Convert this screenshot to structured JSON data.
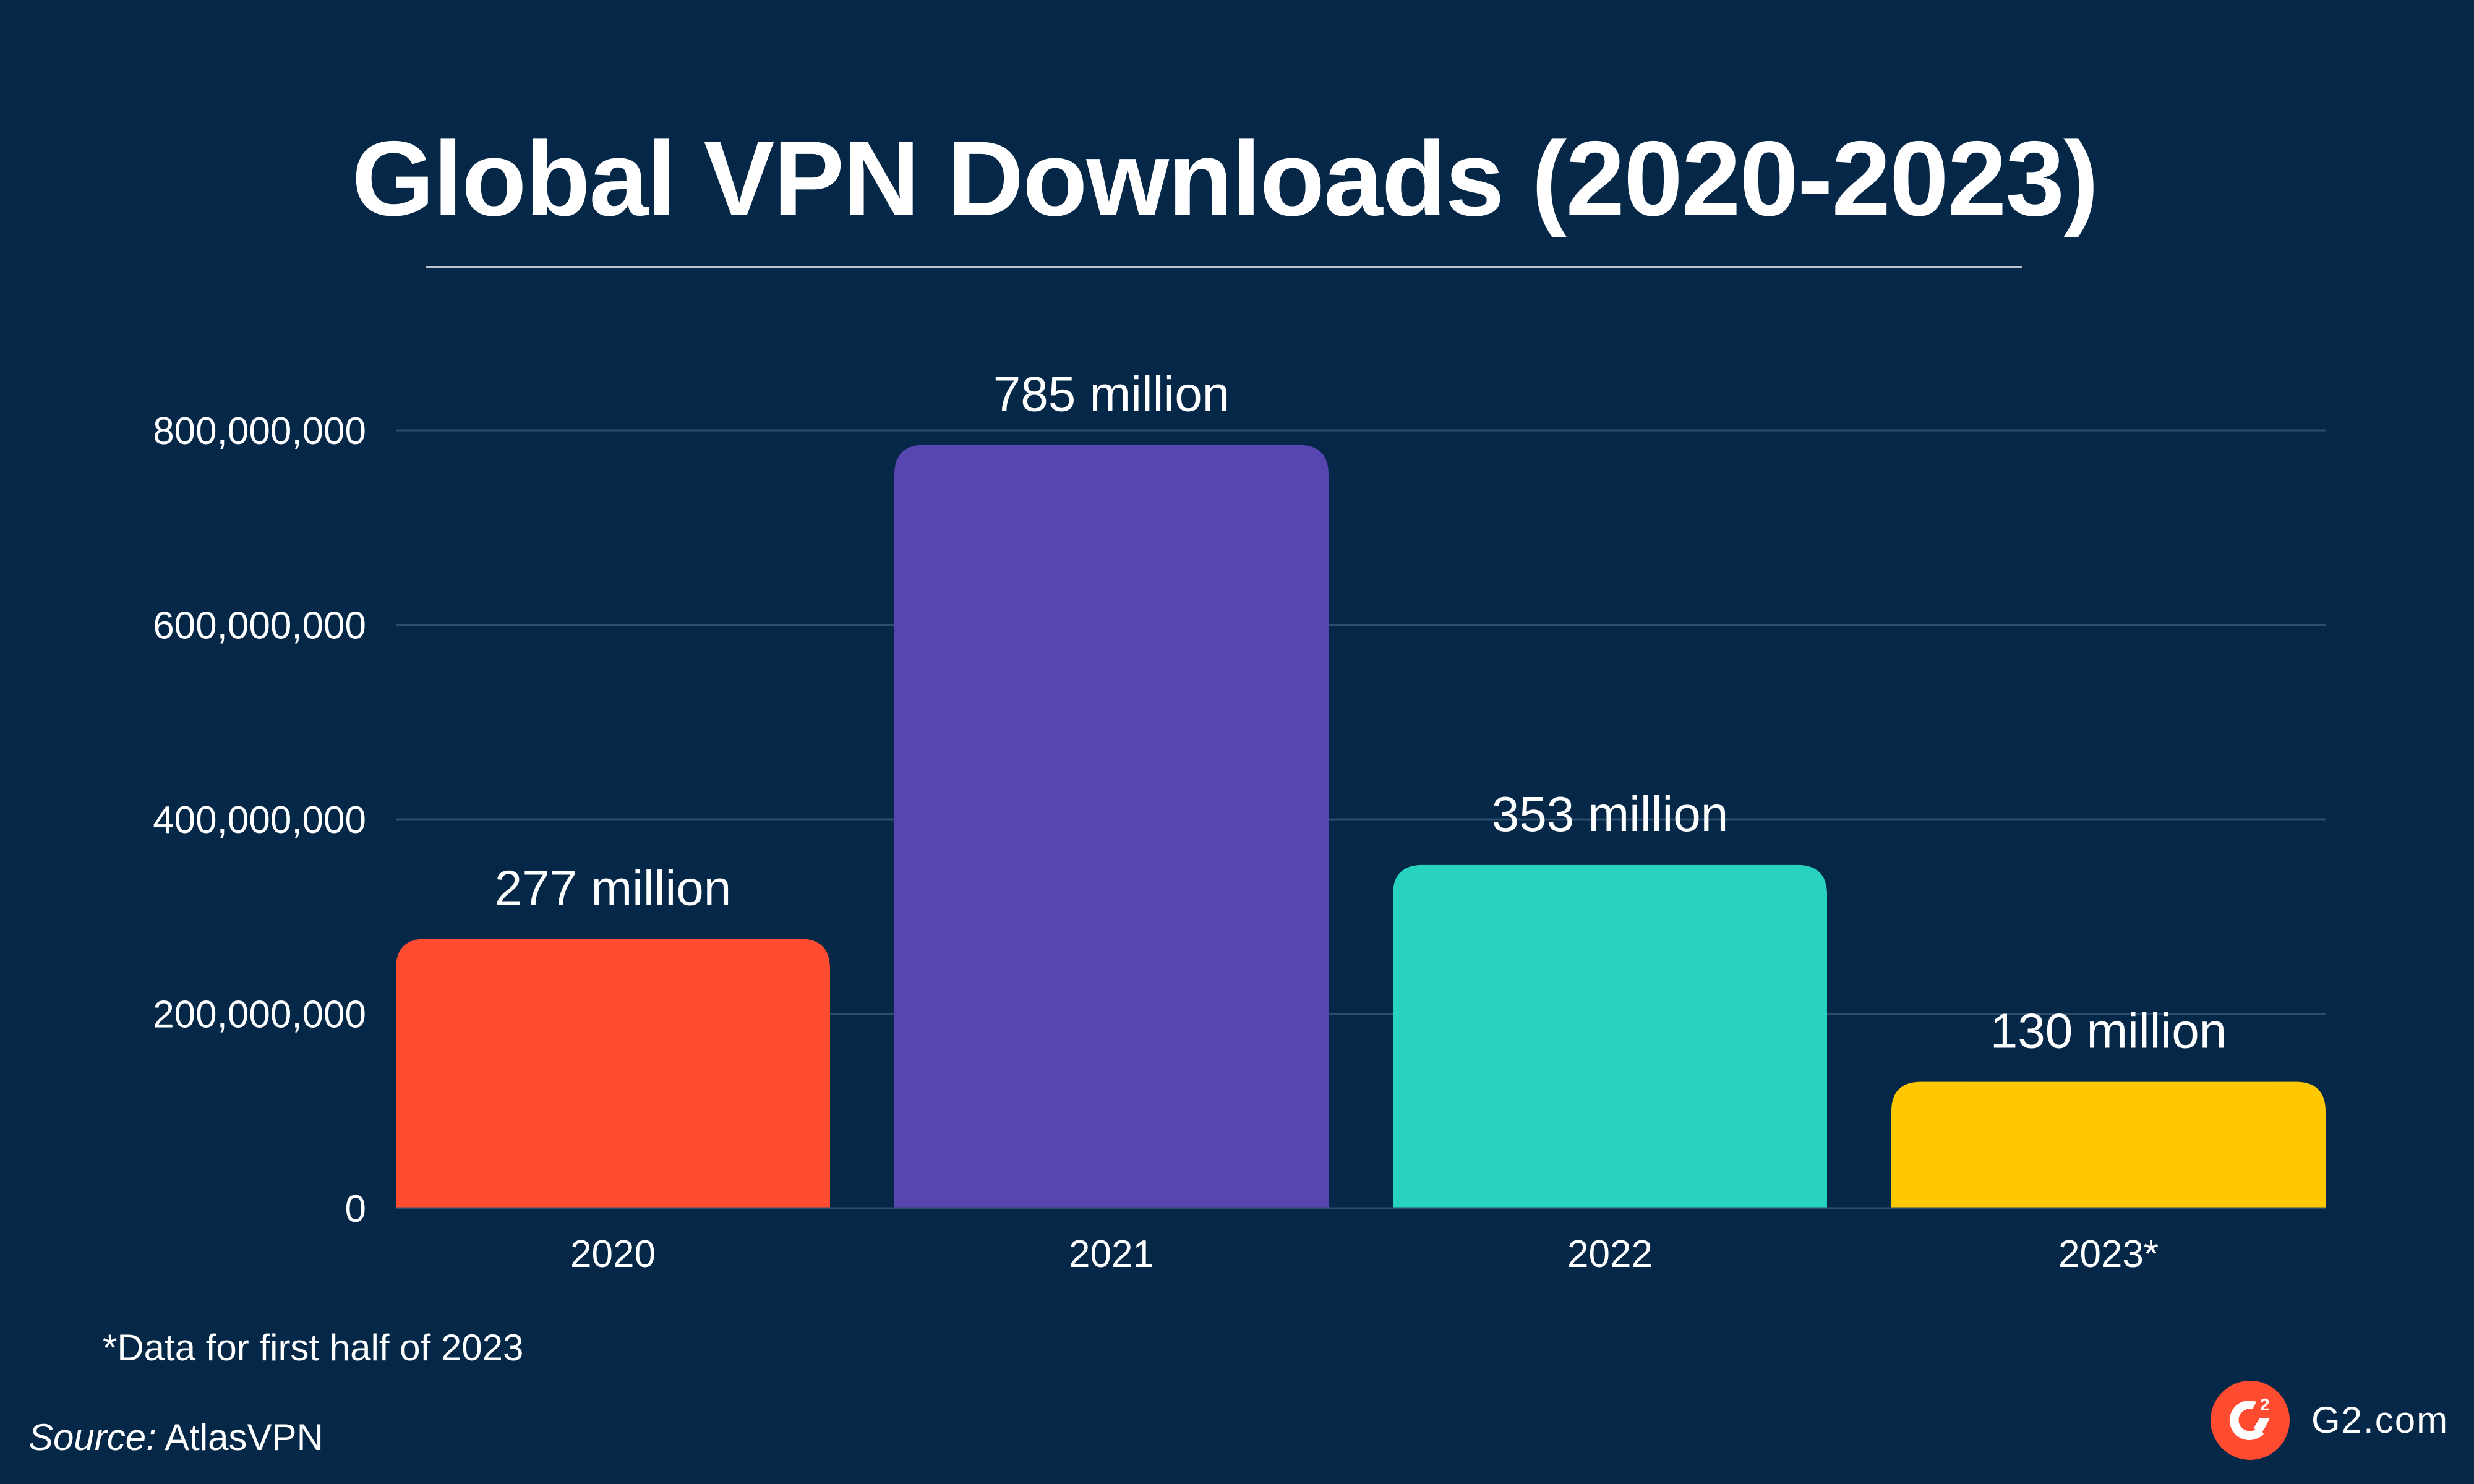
{
  "chart_data": {
    "type": "bar",
    "title": "Global VPN Downloads (2020-2023)",
    "categories": [
      "2020",
      "2021",
      "2022",
      "2023*"
    ],
    "values": [
      277000000,
      785000000,
      353000000,
      130000000
    ],
    "data_labels": [
      "277 million",
      "785 million",
      "353 million",
      "130 million"
    ],
    "colors": [
      "#ff4b2f",
      "#5746af",
      "#27d3bf",
      "#ffc800"
    ],
    "yticks": [
      0,
      200000000,
      400000000,
      600000000,
      800000000
    ],
    "ytick_labels": [
      "0",
      "200,000,000",
      "400,000,000",
      "600,000,000",
      "800,000,000"
    ],
    "ylim": [
      0,
      800000000
    ],
    "grid": true,
    "xlabel": "",
    "ylabel": ""
  },
  "footnote": "*Data for first half of 2023",
  "source": {
    "label": "Source:",
    "value": " AtlasVPN"
  },
  "brand": {
    "site": "G2.com",
    "logo_text": "G2",
    "logo_color": "#ff4b2f"
  },
  "background": "#062848"
}
